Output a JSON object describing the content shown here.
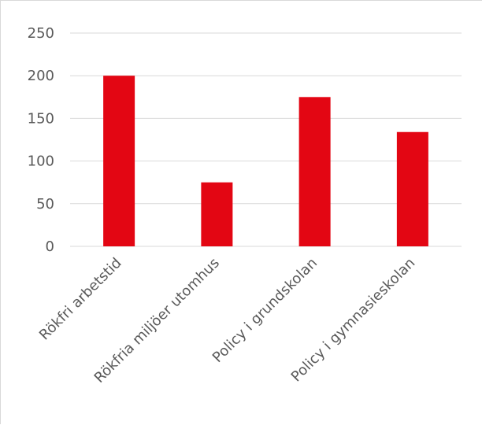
{
  "chart_data": {
    "type": "bar",
    "categories": [
      "Rökfri arbetstid",
      "Rökfria miljöer utomhus",
      "Policy i grundskolan",
      "Policy i gymnasieskolan"
    ],
    "values": [
      200,
      75,
      175,
      134
    ],
    "ylim": [
      0,
      250
    ],
    "yticks": [
      0,
      50,
      100,
      150,
      200,
      250
    ],
    "grid": true,
    "legend": "none",
    "bar_color": "#e30613",
    "grid_color": "#d9d9d9",
    "text_color": "#595959",
    "title": "",
    "xlabel": "",
    "ylabel": ""
  }
}
